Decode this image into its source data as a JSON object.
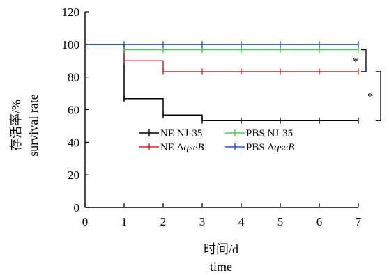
{
  "chart_data": {
    "type": "line",
    "step": true,
    "x": [
      0,
      1,
      2,
      3,
      4,
      5,
      6,
      7
    ],
    "xlim": [
      0,
      7
    ],
    "ylim": [
      0,
      120
    ],
    "xticks": [
      "0",
      "1",
      "2",
      "3",
      "4",
      "5",
      "6",
      "7"
    ],
    "yticks": [
      "0",
      "20",
      "40",
      "60",
      "80",
      "100",
      "120"
    ],
    "xlabel": "时间/d",
    "xlabel_en": "time",
    "ylabel": "存活率/%",
    "ylabel_en": "survival rate",
    "grid": false,
    "legend_position": "center",
    "series": [
      {
        "name_prefix": "NE ",
        "name_italic": "",
        "name_suffix": "NJ-35",
        "color": "#000000",
        "values": [
          100,
          66.7,
          56.7,
          53.3,
          53.3,
          53.3,
          53.3,
          53.3
        ]
      },
      {
        "name_prefix": "PBS ",
        "name_italic": "",
        "name_suffix": "NJ-35",
        "color": "#33dd33",
        "values": [
          100,
          96.7,
          96.7,
          96.7,
          96.7,
          96.7,
          96.7,
          96.7
        ]
      },
      {
        "name_prefix": "NE Δ",
        "name_italic": "qseB",
        "name_suffix": "",
        "color": "#e02020",
        "values": [
          100,
          90,
          83.3,
          83.3,
          83.3,
          83.3,
          83.3,
          83.3
        ]
      },
      {
        "name_prefix": "PBS Δ",
        "name_italic": "qseB",
        "name_suffix": "",
        "color": "#2050e0",
        "values": [
          100,
          100,
          100,
          100,
          100,
          100,
          100,
          100
        ]
      }
    ],
    "annotations": [
      {
        "text": "*",
        "from": 96.7,
        "to": 83.3
      },
      {
        "text": "*",
        "from": 83.3,
        "to": 53.3
      }
    ]
  }
}
